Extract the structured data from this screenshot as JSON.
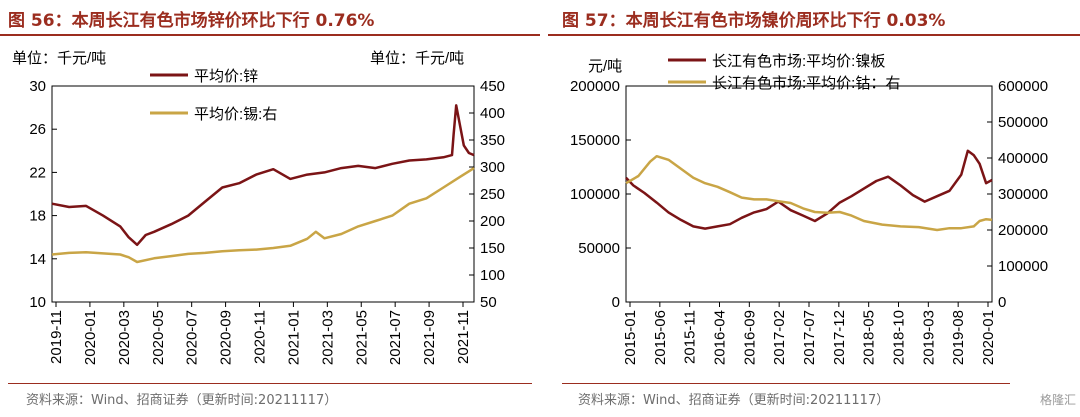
{
  "charts": [
    {
      "title": "图 56：本周长江有色市场锌价环比下行 0.76%",
      "unit_left": "单位：千元/吨",
      "unit_right": "单位：千元/吨",
      "source": "资料来源：Wind、招商证券（更新时间:20211117）",
      "colors": {
        "primary": "#7b1416",
        "secondary": "#c9a546",
        "title": "#9b2d1f"
      }
    },
    {
      "title": "图 57：本周长江有色市场镍价周环比下行 0.03%",
      "unit_left": "元/吨",
      "source": "资料来源：Wind、招商证券（更新时间:20211117）",
      "colors": {
        "primary": "#7b1416",
        "secondary": "#c9a546",
        "title": "#9b2d1f"
      }
    }
  ],
  "watermark": "格隆汇",
  "chart_data": [
    {
      "type": "line",
      "x_ticks": [
        "2019-11",
        "2020-01",
        "2020-03",
        "2020-05",
        "2020-07",
        "2020-09",
        "2020-11",
        "2021-01",
        "2021-03",
        "2021-05",
        "2021-07",
        "2021-09",
        "2021-11"
      ],
      "x_range": [
        2019.833,
        2021.9
      ],
      "y_left_range": [
        10,
        30
      ],
      "y_left_ticks": [
        "10",
        "14",
        "18",
        "22",
        "26",
        "30"
      ],
      "y_right_range": [
        50,
        450
      ],
      "y_right_ticks": [
        "50",
        "100",
        "150",
        "200",
        "250",
        "300",
        "350",
        "400",
        "450"
      ],
      "legend": "top-left",
      "grid": false,
      "series": [
        {
          "name": "平均价:锌",
          "axis": "left",
          "color": "#7b1416",
          "x": [
            2019.833,
            2019.917,
            2020.0,
            2020.083,
            2020.167,
            2020.208,
            2020.25,
            2020.292,
            2020.333,
            2020.417,
            2020.5,
            2020.583,
            2020.667,
            2020.75,
            2020.833,
            2020.917,
            2021.0,
            2021.083,
            2021.167,
            2021.25,
            2021.333,
            2021.417,
            2021.5,
            2021.583,
            2021.667,
            2021.75,
            2021.792,
            2021.8,
            2021.813,
            2021.83,
            2021.85,
            2021.875,
            2021.9
          ],
          "values": [
            19.1,
            18.8,
            18.9,
            18.0,
            17.0,
            16.0,
            15.3,
            16.2,
            16.5,
            17.2,
            18.0,
            19.3,
            20.6,
            21.0,
            21.8,
            22.3,
            21.4,
            21.8,
            22.0,
            22.4,
            22.6,
            22.4,
            22.8,
            23.1,
            23.2,
            23.4,
            23.6,
            25.5,
            28.2,
            26.5,
            24.5,
            23.8,
            23.6
          ]
        },
        {
          "name": "平均价:锡:右",
          "axis": "right",
          "color": "#c9a546",
          "x": [
            2019.833,
            2019.917,
            2020.0,
            2020.083,
            2020.167,
            2020.208,
            2020.25,
            2020.333,
            2020.417,
            2020.5,
            2020.583,
            2020.667,
            2020.75,
            2020.833,
            2020.917,
            2021.0,
            2021.083,
            2021.125,
            2021.167,
            2021.25,
            2021.333,
            2021.417,
            2021.5,
            2021.583,
            2021.667,
            2021.75,
            2021.833,
            2021.875,
            2021.9
          ],
          "values": [
            138,
            141,
            142,
            140,
            138,
            133,
            124,
            131,
            135,
            139,
            141,
            144,
            146,
            147,
            150,
            154,
            167,
            180,
            168,
            176,
            190,
            200,
            210,
            232,
            242,
            262,
            282,
            292,
            298
          ]
        }
      ]
    },
    {
      "type": "line",
      "x_ticks": [
        "2015-01",
        "2015-06",
        "2015-11",
        "2016-04",
        "2016-09",
        "2017-02",
        "2017-07",
        "2017-12",
        "2018-05",
        "2018-10",
        "2019-03",
        "2019-08",
        "2020-01"
      ],
      "x_range": [
        2015.0,
        2020.0
      ],
      "y_left_range": [
        0,
        200000
      ],
      "y_left_ticks": [
        "0",
        "50000",
        "100000",
        "150000",
        "200000"
      ],
      "y_right_range": [
        0,
        600000
      ],
      "y_right_ticks": [
        "0",
        "100000",
        "200000",
        "300000",
        "400000",
        "500000",
        "600000"
      ],
      "legend": "top-left",
      "grid": false,
      "series": [
        {
          "name": "长江有色市场:平均价:镍板",
          "axis": "left",
          "color": "#7b1416",
          "x": [
            2015.0,
            2015.1,
            2015.25,
            2015.42,
            2015.58,
            2015.75,
            2015.92,
            2016.08,
            2016.25,
            2016.42,
            2016.58,
            2016.75,
            2016.92,
            2017.08,
            2017.25,
            2017.42,
            2017.58,
            2017.75,
            2017.92,
            2018.08,
            2018.25,
            2018.42,
            2018.58,
            2018.75,
            2018.92,
            2019.08,
            2019.25,
            2019.42,
            2019.58,
            2019.67,
            2019.75,
            2019.83,
            2019.92,
            2020.0
          ],
          "values": [
            115000,
            108000,
            101000,
            92000,
            83000,
            76000,
            70000,
            68000,
            70000,
            72000,
            78000,
            83000,
            86000,
            93000,
            85000,
            80000,
            75000,
            82000,
            92000,
            98000,
            105000,
            112000,
            116000,
            108000,
            99000,
            93000,
            98000,
            103000,
            118000,
            140000,
            136000,
            128000,
            110000,
            113000
          ]
        },
        {
          "name": "长江有色市场:平均价:钴：右",
          "axis": "right",
          "color": "#c9a546",
          "x": [
            2015.0,
            2015.17,
            2015.33,
            2015.42,
            2015.58,
            2015.75,
            2015.92,
            2016.08,
            2016.25,
            2016.42,
            2016.58,
            2016.75,
            2016.92,
            2017.08,
            2017.25,
            2017.42,
            2017.58,
            2017.75,
            2017.92,
            2018.08,
            2018.25,
            2018.5,
            2018.75,
            2019.0,
            2019.25,
            2019.42,
            2019.58,
            2019.75,
            2019.83,
            2019.92,
            2020.0
          ],
          "values": [
            330000,
            350000,
            390000,
            405000,
            395000,
            370000,
            345000,
            330000,
            320000,
            305000,
            290000,
            285000,
            285000,
            280000,
            275000,
            260000,
            250000,
            248000,
            250000,
            240000,
            225000,
            215000,
            210000,
            208000,
            200000,
            205000,
            205000,
            210000,
            225000,
            230000,
            228000
          ]
        }
      ]
    }
  ]
}
